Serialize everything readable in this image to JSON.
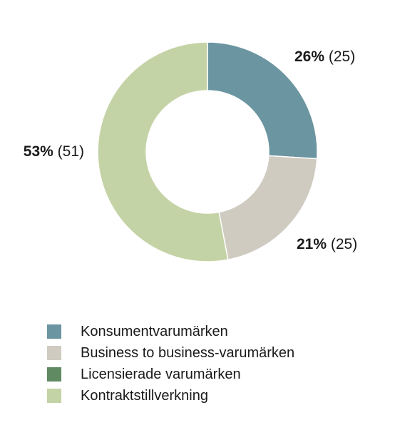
{
  "chart_data": {
    "type": "pie",
    "variant": "donut",
    "slices": [
      {
        "name": "Konsumentvarumärken",
        "value": 26,
        "percent_label": "26%",
        "previous_label": "(25)",
        "color": "#6b95a0"
      },
      {
        "name": "Business to business-varumärken",
        "value": 21,
        "percent_label": "21%",
        "previous_label": "(25)",
        "color": "#cfcbc0"
      },
      {
        "name": "Licensierade varumärken",
        "value": 0,
        "percent_label": "",
        "previous_label": "",
        "color": "#5f8a62"
      },
      {
        "name": "Kontraktstillverkning",
        "value": 53,
        "percent_label": "53%",
        "previous_label": "(51)",
        "color": "#c4d3a5"
      }
    ],
    "legend_position": "bottom-left"
  }
}
